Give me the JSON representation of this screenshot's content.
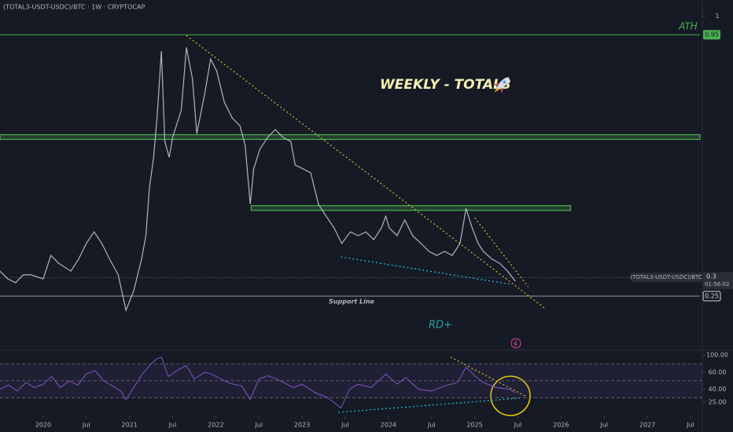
{
  "chart_data": [
    {
      "type": "line",
      "title": "(TOTAL3-USDT-USDC)/BTC · 1W · CRYPTOCAP",
      "heading": "WEEKLY - TOTAL3",
      "annotation": "RD+",
      "color": "#b2b5be",
      "xlim": [
        2019.5,
        2027.61
      ],
      "ylim": [
        0.107,
        1.043
      ],
      "xticks": [
        2020,
        {
          "value": 2020.5,
          "label": "Jul"
        },
        2021,
        {
          "value": 2021.5,
          "label": "Jul"
        },
        2022,
        {
          "value": 2022.5,
          "label": "Jul"
        },
        2023,
        {
          "value": 2023.5,
          "label": "Jul"
        },
        2024,
        {
          "value": 2024.5,
          "label": "Jul"
        },
        2025,
        {
          "value": 2025.5,
          "label": "Jul"
        },
        2026,
        {
          "value": 2026.5,
          "label": "Jul"
        },
        2027,
        {
          "value": 2027.5,
          "label": "Jul"
        }
      ],
      "yticks": [
        1
      ],
      "x": [
        2019.5,
        2019.59,
        2019.68,
        2019.77,
        2019.86,
        2020.0,
        2020.09,
        2020.18,
        2020.32,
        2020.41,
        2020.5,
        2020.59,
        2020.68,
        2020.77,
        2020.87,
        2020.96,
        2021.05,
        2021.14,
        2021.19,
        2021.23,
        2021.28,
        2021.32,
        2021.37,
        2021.41,
        2021.46,
        2021.5,
        2021.6,
        2021.66,
        2021.73,
        2021.78,
        2021.87,
        2021.94,
        2022.01,
        2022.1,
        2022.19,
        2022.28,
        2022.34,
        2022.4,
        2022.44,
        2022.51,
        2022.6,
        2022.69,
        2022.78,
        2022.87,
        2022.92,
        2023.01,
        2023.1,
        2023.19,
        2023.28,
        2023.37,
        2023.46,
        2023.56,
        2023.65,
        2023.74,
        2023.83,
        2023.92,
        2023.97,
        2024.01,
        2024.1,
        2024.19,
        2024.28,
        2024.38,
        2024.47,
        2024.56,
        2024.65,
        2024.74,
        2024.83,
        2024.9,
        2024.97,
        2025.04,
        2025.1,
        2025.2,
        2025.29,
        2025.38,
        2025.47
      ],
      "values": [
        0.317,
        0.296,
        0.286,
        0.307,
        0.307,
        0.296,
        0.359,
        0.338,
        0.317,
        0.349,
        0.391,
        0.422,
        0.391,
        0.349,
        0.307,
        0.212,
        0.265,
        0.349,
        0.412,
        0.538,
        0.622,
        0.727,
        0.906,
        0.664,
        0.622,
        0.675,
        0.748,
        0.916,
        0.832,
        0.685,
        0.79,
        0.885,
        0.853,
        0.769,
        0.727,
        0.706,
        0.654,
        0.496,
        0.591,
        0.643,
        0.675,
        0.696,
        0.675,
        0.664,
        0.601,
        0.591,
        0.58,
        0.496,
        0.464,
        0.433,
        0.391,
        0.422,
        0.412,
        0.422,
        0.401,
        0.433,
        0.464,
        0.433,
        0.412,
        0.454,
        0.412,
        0.391,
        0.37,
        0.359,
        0.37,
        0.359,
        0.391,
        0.485,
        0.433,
        0.391,
        0.37,
        0.349,
        0.338,
        0.317,
        0.29
      ],
      "last": {
        "value": 0.3,
        "label": "0.3",
        "name": "(TOTAL3-USDT-USDC)/BTC",
        "countdown": "01:56:02"
      },
      "levels": [
        {
          "value": 0.95,
          "label": "ATH",
          "price_label": "0.95",
          "from": 2019.5,
          "to": 2027.61,
          "color": "#4caf50"
        },
        {
          "value": 0.676,
          "from": 2019.5,
          "to": 2027.61,
          "color": "#4caf50"
        },
        {
          "value": 0.486,
          "from": 2022.41,
          "to": 2026.11,
          "color": "#4caf50"
        },
        {
          "value": 0.25,
          "label": "Support Line",
          "price_label": "0.25",
          "from": 2019.5,
          "to": 2027.61,
          "color": "#9598a1"
        }
      ],
      "trendlines": [
        {
          "x": [
            2021.66,
            2025.81
          ],
          "y": [
            0.948,
            0.218
          ],
          "color": "#e5b82b"
        },
        {
          "x": [
            2025.0,
            2025.62
          ],
          "y": [
            0.46,
            0.275
          ],
          "color": "#e5b82b"
        },
        {
          "x": [
            2023.45,
            2025.41
          ],
          "y": [
            0.355,
            0.282
          ],
          "color": "#26c6da"
        }
      ]
    },
    {
      "type": "line",
      "color": "#7e57c2",
      "xlim": [
        2019.5,
        2027.61
      ],
      "ylim": [
        10,
        85
      ],
      "yticks": [
        {
          "value": 100,
          "label": "100.00"
        },
        {
          "value": 60,
          "label": "60.00"
        },
        {
          "value": 40,
          "label": "40.00"
        },
        {
          "value": 25,
          "label": "25.00"
        }
      ],
      "guides": [
        70,
        50,
        30
      ],
      "x": [
        2019.5,
        2019.6,
        2019.7,
        2019.8,
        2019.9,
        2020.0,
        2020.1,
        2020.2,
        2020.3,
        2020.4,
        2020.5,
        2020.6,
        2020.7,
        2020.8,
        2020.9,
        2020.96,
        2021.05,
        2021.15,
        2021.25,
        2021.32,
        2021.37,
        2021.45,
        2021.55,
        2021.66,
        2021.75,
        2021.87,
        2021.95,
        2022.1,
        2022.2,
        2022.3,
        2022.4,
        2022.5,
        2022.6,
        2022.75,
        2022.9,
        2023.0,
        2023.15,
        2023.3,
        2023.45,
        2023.55,
        2023.65,
        2023.8,
        2023.97,
        2024.1,
        2024.2,
        2024.35,
        2024.5,
        2024.65,
        2024.8,
        2024.9,
        2025.0,
        2025.1,
        2025.25,
        2025.4,
        2025.47
      ],
      "values": [
        40,
        45,
        38,
        48,
        42,
        46,
        55,
        42,
        50,
        45,
        58,
        62,
        50,
        44,
        38,
        28,
        42,
        58,
        70,
        76,
        78,
        55,
        62,
        68,
        52,
        60,
        58,
        50,
        46,
        44,
        28,
        52,
        56,
        50,
        42,
        46,
        36,
        30,
        18,
        40,
        46,
        42,
        58,
        46,
        54,
        40,
        38,
        44,
        48,
        66,
        56,
        48,
        42,
        40,
        36
      ],
      "trendlines": [
        {
          "x": [
            2024.72,
            2025.6
          ],
          "y": [
            77.9,
            31.4
          ],
          "color": "#e5b82b"
        },
        {
          "x": [
            2023.42,
            2025.52
          ],
          "y": [
            12.8,
            29.5
          ],
          "color": "#26c6da"
        }
      ]
    }
  ]
}
